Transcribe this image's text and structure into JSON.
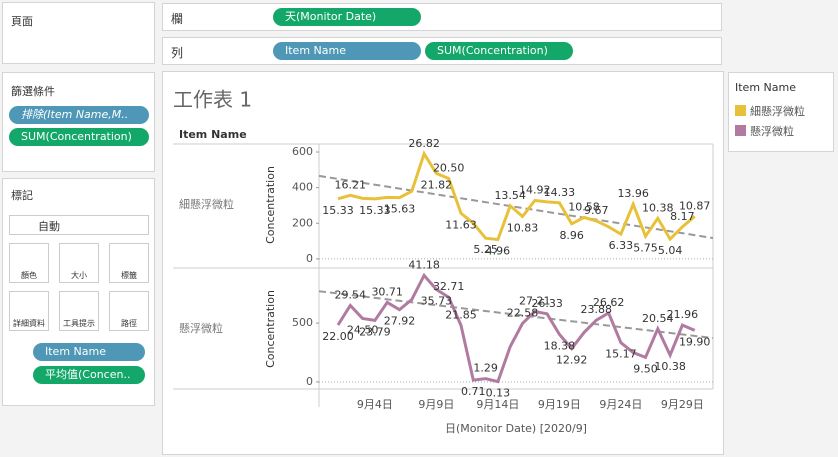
{
  "shelves": {
    "pages_title": "頁面",
    "columns_label": "欄",
    "columns_pill": "天(Monitor Date)",
    "rows_label": "列",
    "rows_pills": [
      "Item Name",
      "SUM(Concentration)"
    ]
  },
  "filters": {
    "title": "篩選條件",
    "pills": [
      "排除(Item Name,M..",
      "SUM(Concentration)"
    ]
  },
  "marks": {
    "title": "標記",
    "mark_type": "自動",
    "buttons": [
      "顏色",
      "大小",
      "標籤",
      "詳細資料",
      "工具提示",
      "路徑"
    ],
    "pills": [
      "Item Name",
      "平均值(Concen.."
    ]
  },
  "sheet": {
    "title": "工作表 1",
    "row_header": "Item Name",
    "x_title": "日(Monitor Date) [2020/9]",
    "x_categories": [
      null,
      null,
      null,
      "9月4日",
      null,
      null,
      null,
      null,
      "9月9日",
      null,
      null,
      null,
      null,
      "9月14日",
      null,
      null,
      null,
      null,
      "9月19日",
      null,
      null,
      null,
      null,
      "9月24日",
      null,
      null,
      null,
      null,
      "9月29日",
      null
    ]
  },
  "legend": {
    "title": "Item Name"
  },
  "chart_data": [
    {
      "type": "line",
      "name": "細懸浮微粒",
      "color": "#e8c13a",
      "y_label": "Concentration",
      "ylim": [
        -40,
        645
      ],
      "yticks": [
        0,
        200,
        400,
        600
      ],
      "values": [
        337,
        357,
        340,
        337,
        345,
        344,
        380,
        590,
        480,
        451,
        256,
        200,
        116,
        109,
        298,
        238,
        328,
        320,
        315,
        197,
        233,
        213,
        180,
        139,
        307,
        127,
        228,
        111,
        180,
        239
      ],
      "labels": [
        "15.33",
        "16.21",
        null,
        "15.33",
        null,
        "15.63",
        null,
        "26.82",
        "21.82",
        "20.50",
        "11.63",
        null,
        "5.25",
        "4.96",
        "13.54",
        "10.83",
        "14.92",
        null,
        "14.33",
        "8.96",
        "10.58",
        "9.67",
        null,
        "6.33",
        "13.96",
        "5.75",
        "10.38",
        "5.04",
        "8.17",
        "10.87"
      ],
      "trend": [
        466,
        117
      ]
    },
    {
      "type": "line",
      "name": "懸浮微粒",
      "color": "#b07aa1",
      "y_label": "Concentration",
      "ylim": [
        -60,
        960
      ],
      "yticks": [
        0,
        500
      ],
      "values": [
        484,
        650,
        539,
        523,
        676,
        614,
        700,
        906,
        786,
        720,
        481,
        16,
        28,
        3,
        300,
        497,
        599,
        579,
        404,
        284,
        420,
        525,
        586,
        334,
        250,
        209,
        452,
        228,
        483,
        438
      ],
      "labels": [
        "22.00",
        "29.54",
        "24.50",
        "23.79",
        "30.71",
        "27.92",
        null,
        "41.18",
        "35.73",
        "32.71",
        "21.85",
        "0.71",
        "1.29",
        "0.13",
        null,
        "22.58",
        "27.21",
        "26.33",
        "18.38",
        "12.92",
        null,
        "23.88",
        "26.62",
        "15.17",
        null,
        "9.50",
        "20.54",
        "10.38",
        "21.96",
        "19.90"
      ],
      "trend": [
        771,
        373
      ]
    }
  ]
}
